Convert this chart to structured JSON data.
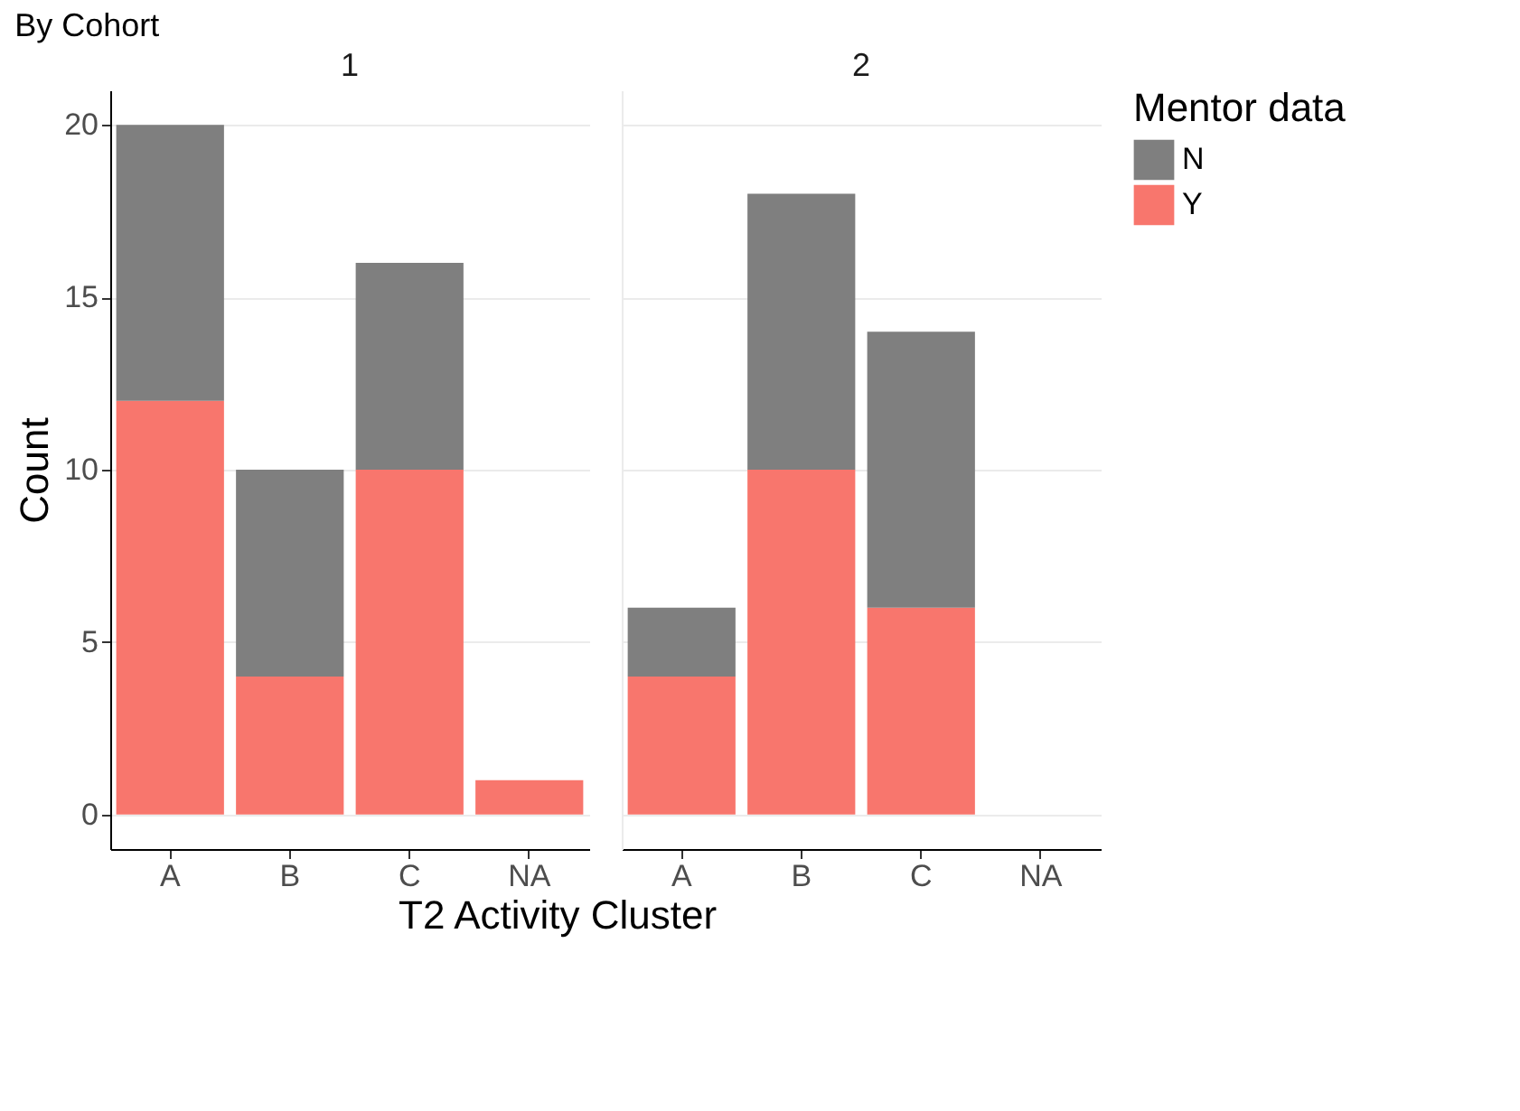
{
  "chart_data": [
    {
      "type": "bar",
      "title": "By Cohort",
      "subtitle": "1",
      "xlabel": "T2 Activity Cluster",
      "ylabel": "Count",
      "legend_title": "Mentor data",
      "categories": [
        "A",
        "B",
        "C",
        "NA"
      ],
      "stacked": true,
      "series": [
        {
          "name": "Y",
          "color": "#f8766d",
          "values": [
            12,
            4,
            10,
            1
          ]
        },
        {
          "name": "N",
          "color": "#7f7f7f",
          "values": [
            8,
            6,
            6,
            0
          ]
        }
      ],
      "ylim": [
        -1,
        21
      ],
      "yticks": [
        0,
        5,
        10,
        15,
        20
      ],
      "grid": "y",
      "legend": "right"
    },
    {
      "type": "bar",
      "subtitle": "2",
      "categories": [
        "A",
        "B",
        "C",
        "NA"
      ],
      "stacked": true,
      "series": [
        {
          "name": "Y",
          "color": "#f8766d",
          "values": [
            4,
            10,
            6,
            null
          ]
        },
        {
          "name": "N",
          "color": "#7f7f7f",
          "values": [
            2,
            8,
            8,
            null
          ]
        }
      ],
      "ylim": [
        -1,
        21
      ],
      "yticks": [
        0,
        5,
        10,
        15,
        20
      ],
      "grid": "y",
      "tick_labels": "x"
    }
  ]
}
